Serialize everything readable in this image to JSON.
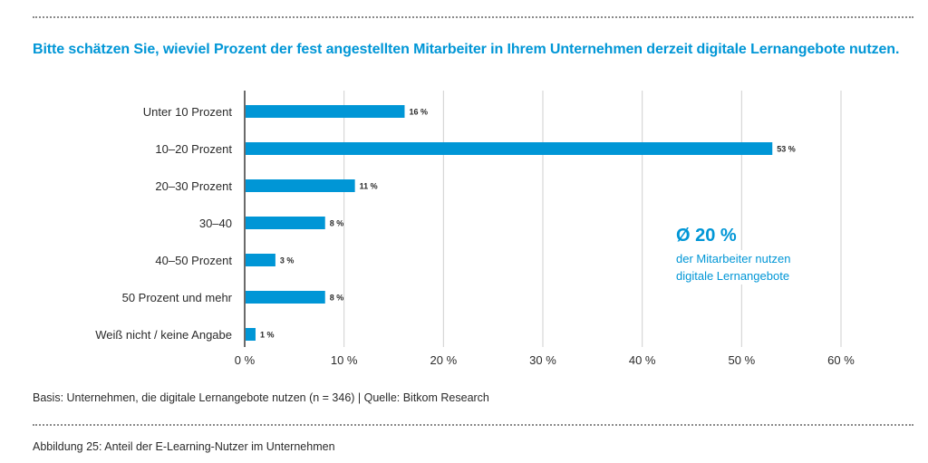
{
  "chart_data": {
    "type": "bar",
    "orientation": "horizontal",
    "title": "Bitte schätzen Sie, wieviel Prozent der fest angestellten Mitarbeiter in Ihrem Unternehmen derzeit digitale Lernangebote nutzen.",
    "categories": [
      "Unter 10 Prozent",
      "10–20 Prozent",
      "20–30 Prozent",
      "30–40",
      "40–50 Prozent",
      "50 Prozent und mehr",
      "Weiß nicht / keine Angabe"
    ],
    "values": [
      16,
      53,
      11,
      8,
      3,
      8,
      1
    ],
    "value_labels": [
      "16 %",
      "53 %",
      "11 %",
      "8 %",
      "3 %",
      "8 %",
      "1 %"
    ],
    "xlim": [
      0,
      60
    ],
    "x_ticks": [
      0,
      10,
      20,
      30,
      40,
      50,
      60
    ],
    "x_tick_labels": [
      "0 %",
      "10 %",
      "20 %",
      "30 %",
      "40 %",
      "50 %",
      "60 %"
    ],
    "grid": true,
    "bar_color": "#0096d6",
    "annotation": {
      "headline": "Ø 20 %",
      "line1": "der Mitarbeiter nutzen",
      "line2": "digitale Lernangebote"
    }
  },
  "footer": {
    "basis": "Basis: Unternehmen, die digitale Lernangebote nutzen (n = 346) | Quelle: Bitkom Research",
    "caption": "Abbildung 25: Anteil der E-Learning-Nutzer im Unternehmen"
  },
  "colors": {
    "accent": "#0096d6",
    "text": "#2b2b2b",
    "grid": "#cfcfcf"
  }
}
